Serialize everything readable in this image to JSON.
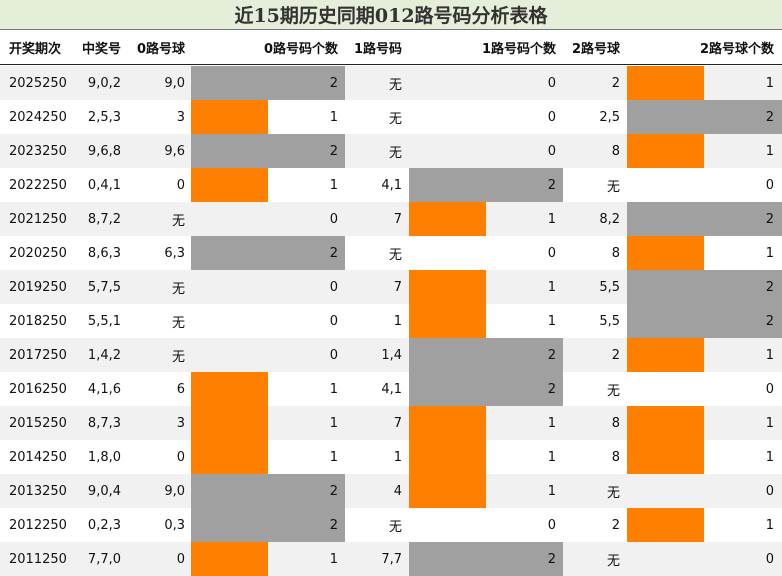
{
  "title": "近15期历史同期012路号码分析表格",
  "headers": [
    "开奖期次",
    "中奖号",
    "0路号球",
    "0路号码个数",
    "1路号码",
    "1路号码个数",
    "2路号球",
    "2路号球个数"
  ],
  "colors": {
    "count_1": "#ff7f00",
    "count_2": "#a0a0a0",
    "row_alt": "#f1f1f1",
    "title_bg": "#e4eed9"
  },
  "chart_data": {
    "type": "table",
    "title": "近15期历史同期012路号码分析表格",
    "columns": [
      "开奖期次",
      "中奖号",
      "0路号球",
      "0路号码个数",
      "1路号码",
      "1路号码个数",
      "2路号球",
      "2路号球个数"
    ],
    "rows": [
      {
        "issue": "2025250",
        "number": "9,0,2",
        "r0": "9,0",
        "c0": 2,
        "r1": "无",
        "c1": 0,
        "r2": "2",
        "c2": 1
      },
      {
        "issue": "2024250",
        "number": "2,5,3",
        "r0": "3",
        "c0": 1,
        "r1": "无",
        "c1": 0,
        "r2": "2,5",
        "c2": 2
      },
      {
        "issue": "2023250",
        "number": "9,6,8",
        "r0": "9,6",
        "c0": 2,
        "r1": "无",
        "c1": 0,
        "r2": "8",
        "c2": 1
      },
      {
        "issue": "2022250",
        "number": "0,4,1",
        "r0": "0",
        "c0": 1,
        "r1": "4,1",
        "c1": 2,
        "r2": "无",
        "c2": 0
      },
      {
        "issue": "2021250",
        "number": "8,7,2",
        "r0": "无",
        "c0": 0,
        "r1": "7",
        "c1": 1,
        "r2": "8,2",
        "c2": 2
      },
      {
        "issue": "2020250",
        "number": "8,6,3",
        "r0": "6,3",
        "c0": 2,
        "r1": "无",
        "c1": 0,
        "r2": "8",
        "c2": 1
      },
      {
        "issue": "2019250",
        "number": "5,7,5",
        "r0": "无",
        "c0": 0,
        "r1": "7",
        "c1": 1,
        "r2": "5,5",
        "c2": 2
      },
      {
        "issue": "2018250",
        "number": "5,5,1",
        "r0": "无",
        "c0": 0,
        "r1": "1",
        "c1": 1,
        "r2": "5,5",
        "c2": 2
      },
      {
        "issue": "2017250",
        "number": "1,4,2",
        "r0": "无",
        "c0": 0,
        "r1": "1,4",
        "c1": 2,
        "r2": "2",
        "c2": 1
      },
      {
        "issue": "2016250",
        "number": "4,1,6",
        "r0": "6",
        "c0": 1,
        "r1": "4,1",
        "c1": 2,
        "r2": "无",
        "c2": 0
      },
      {
        "issue": "2015250",
        "number": "8,7,3",
        "r0": "3",
        "c0": 1,
        "r1": "7",
        "c1": 1,
        "r2": "8",
        "c2": 1
      },
      {
        "issue": "2014250",
        "number": "1,8,0",
        "r0": "0",
        "c0": 1,
        "r1": "1",
        "c1": 1,
        "r2": "8",
        "c2": 1
      },
      {
        "issue": "2013250",
        "number": "9,0,4",
        "r0": "9,0",
        "c0": 2,
        "r1": "4",
        "c1": 1,
        "r2": "无",
        "c2": 0
      },
      {
        "issue": "2012250",
        "number": "0,2,3",
        "r0": "0,3",
        "c0": 2,
        "r1": "无",
        "c1": 0,
        "r2": "2",
        "c2": 1
      },
      {
        "issue": "2011250",
        "number": "7,7,0",
        "r0": "0",
        "c0": 1,
        "r1": "7,7",
        "c1": 2,
        "r2": "无",
        "c2": 0
      }
    ]
  }
}
